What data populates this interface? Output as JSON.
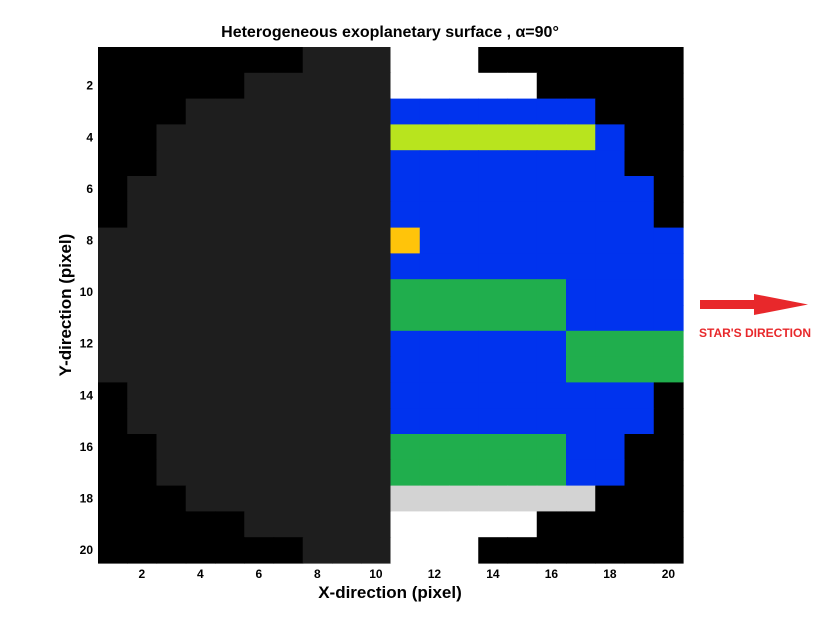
{
  "chart_data": {
    "type": "heatmap",
    "title": "Heterogeneous exoplanetary surface , α=90°",
    "xlabel": "X-direction (pixel)",
    "ylabel": "Y-direction (pixel)",
    "xlim": [
      0.5,
      20.5
    ],
    "ylim": [
      0.5,
      20.5
    ],
    "y_axis_reversed": true,
    "x_ticks": [
      2,
      4,
      6,
      8,
      10,
      12,
      14,
      16,
      18,
      20
    ],
    "y_ticks": [
      2,
      4,
      6,
      8,
      10,
      12,
      14,
      16,
      18,
      20
    ],
    "grid": false,
    "legend": "none",
    "annotation": {
      "text": "STAR'S DIRECTION",
      "arrow_direction": "right"
    },
    "colors": {
      "K": "#000000",
      "D": "#1e1e1e",
      "W": "#ffffff",
      "B": "#0033ee",
      "Y": "#b8e41e",
      "O": "#ffc40a",
      "G": "#20ae4d",
      "L": "#d3d3d3",
      "arrow": "#e8282b"
    },
    "grid_rows": [
      "KKKKKKKDDDWWWKKKKKKK",
      "KKKKKDDDDDWWWWWKKKKK",
      "KKKDDDDDDDBBBBBBBKKK",
      "KKDDDDDDDDYYYYYYYBKK",
      "KKDDDDDDDDBBBBBBBBKK",
      "KDDDDDDDDDBBBBBBBBBK",
      "KDDDDDDDDDBBBBBBBBBK",
      "DDDDDDDDDDOBBBBBBBBB",
      "DDDDDDDDDDBBBBBBBBBB",
      "DDDDDDDDDDGGGGGGBBBB",
      "DDDDDDDDDDGGGGGGBBBB",
      "DDDDDDDDDDBBBBBBGGGG",
      "DDDDDDDDDDBBBBBBGGGG",
      "KDDDDDDDDDBBBBBBBBBK",
      "KDDDDDDDDDBBBBBBBBBK",
      "KKDDDDDDDDGGGGGGBBKK",
      "KKDDDDDDDDGGGGGGBBKK",
      "KKKDDDDDDDLLLLLLLKKK",
      "KKKKKDDDDDWWWWWKKKKK",
      "KKKKKKKDDDWWWKKKKKKK"
    ]
  }
}
